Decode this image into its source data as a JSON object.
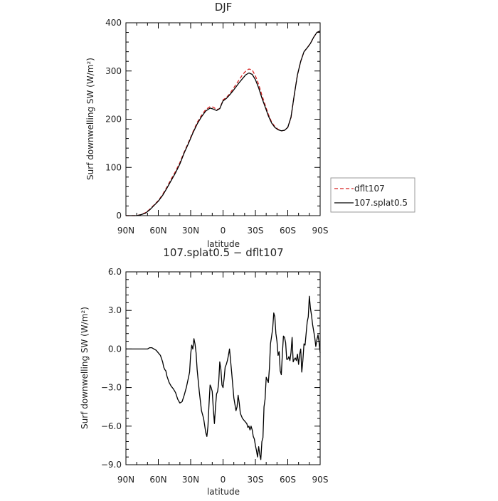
{
  "figure": {
    "background": "#ffffff"
  },
  "chart_data": [
    {
      "type": "line",
      "title": "DJF",
      "xlabel": "latitude",
      "ylabel": "Surf downwelling SW (W/m²)",
      "xlim": [
        -90,
        90
      ],
      "ylim": [
        0,
        400
      ],
      "x_ticks": [
        -90,
        -60,
        -30,
        0,
        30,
        60,
        90
      ],
      "x_tick_labels": [
        "90N",
        "60N",
        "30N",
        "0",
        "30S",
        "60S",
        "90S"
      ],
      "y_ticks": [
        0,
        100,
        200,
        300,
        400
      ],
      "y_tick_labels": [
        "0",
        "100",
        "200",
        "300",
        "400"
      ],
      "legend": {
        "placement": "right",
        "entries": [
          "dflt107",
          "107.splat0.5"
        ]
      },
      "series": [
        {
          "name": "dflt107",
          "color": "#d62020",
          "style": "dashed",
          "x": [
            -90,
            -80,
            -76,
            -72,
            -68,
            -64,
            -60,
            -56,
            -52,
            -48,
            -44,
            -40,
            -36,
            -32,
            -28,
            -24,
            -20,
            -16,
            -12,
            -9,
            -6,
            -3,
            0,
            3,
            6,
            9,
            12,
            15,
            18,
            21,
            24,
            27,
            30,
            33,
            36,
            39,
            42,
            45,
            48,
            51,
            54,
            57,
            60,
            63,
            66,
            69,
            72,
            75,
            78,
            81,
            84,
            87,
            90
          ],
          "y": [
            0,
            0,
            2,
            6,
            13,
            22,
            31,
            44,
            59,
            76,
            92,
            110,
            132,
            152,
            173,
            193,
            208,
            220,
            226,
            225,
            220,
            222,
            240,
            245,
            252,
            262,
            272,
            282,
            292,
            300,
            304,
            302,
            290,
            272,
            250,
            230,
            210,
            194,
            185,
            179,
            176,
            177,
            183,
            203,
            250,
            292,
            320,
            340,
            348,
            357,
            370,
            380,
            383
          ]
        },
        {
          "name": "107.splat0.5",
          "color": "#000000",
          "style": "solid",
          "x": [
            -90,
            -80,
            -76,
            -72,
            -68,
            -64,
            -60,
            -56,
            -52,
            -48,
            -44,
            -40,
            -36,
            -32,
            -28,
            -24,
            -20,
            -16,
            -12,
            -9,
            -6,
            -3,
            0,
            3,
            6,
            9,
            12,
            15,
            18,
            21,
            24,
            27,
            30,
            33,
            36,
            39,
            42,
            45,
            48,
            51,
            54,
            57,
            60,
            63,
            66,
            69,
            72,
            75,
            78,
            81,
            84,
            87,
            90
          ],
          "y": [
            0,
            0,
            2,
            5,
            12,
            21,
            30,
            42,
            57,
            73,
            89,
            107,
            130,
            150,
            171,
            190,
            205,
            217,
            223,
            221,
            218,
            222,
            238,
            243,
            250,
            258,
            267,
            276,
            284,
            292,
            296,
            293,
            282,
            265,
            244,
            226,
            207,
            192,
            183,
            178,
            176,
            177,
            183,
            204,
            250,
            292,
            320,
            340,
            348,
            357,
            370,
            380,
            383
          ]
        }
      ]
    },
    {
      "type": "line",
      "title": "107.splat0.5 − dflt107",
      "xlabel": "latitude",
      "ylabel": "Surf downwelling SW (W/m²)",
      "xlim": [
        -90,
        90
      ],
      "ylim": [
        -9,
        6
      ],
      "x_ticks": [
        -90,
        -60,
        -30,
        0,
        30,
        60,
        90
      ],
      "x_tick_labels": [
        "90N",
        "60N",
        "30N",
        "0",
        "30S",
        "60S",
        "90S"
      ],
      "y_ticks": [
        -9,
        -6,
        -3,
        0,
        3,
        6
      ],
      "y_tick_labels": [
        "−9.0",
        "−6.0",
        "−3.0",
        "0.0",
        "3.0",
        "6.0"
      ],
      "series": [
        {
          "color": "#000000",
          "style": "solid",
          "x": [
            -90,
            -80,
            -76,
            -74,
            -72,
            -70,
            -68,
            -66,
            -64,
            -62,
            -60,
            -58,
            -56,
            -55,
            -54,
            -53,
            -52,
            -50,
            -48,
            -46,
            -44,
            -42,
            -40,
            -38,
            -36,
            -34,
            -32,
            -31,
            -30,
            -29,
            -28,
            -27,
            -26,
            -25,
            -24,
            -22,
            -20,
            -18,
            -16,
            -15,
            -14,
            -13,
            -12,
            -11,
            -10,
            -9,
            -8,
            -7,
            -6,
            -5,
            -4,
            -3,
            -2,
            -1,
            0,
            1,
            2,
            3,
            4,
            5,
            6,
            8,
            10,
            12,
            13,
            14,
            15,
            16,
            18,
            20,
            22,
            23,
            24,
            25,
            26,
            27,
            28,
            29,
            30,
            31,
            32,
            33,
            34,
            35,
            36,
            37,
            38,
            39,
            40,
            41,
            42,
            43,
            44,
            45,
            46,
            47,
            48,
            49,
            50,
            51,
            52,
            53,
            54,
            55,
            56,
            57,
            58,
            59,
            60,
            61,
            62,
            63,
            64,
            65,
            66,
            67,
            68,
            69,
            70,
            71,
            72,
            73,
            74,
            75,
            76,
            77,
            78,
            79,
            80,
            81,
            82,
            83,
            84,
            85,
            86,
            87,
            88,
            89,
            90
          ],
          "y": [
            0,
            0,
            0,
            0,
            0,
            0,
            0.1,
            0.1,
            0,
            -0.1,
            -0.3,
            -0.5,
            -1.0,
            -1.4,
            -1.6,
            -1.7,
            -2.1,
            -2.6,
            -2.9,
            -3.1,
            -3.4,
            -3.9,
            -4.2,
            -4.1,
            -3.6,
            -3.0,
            -2.2,
            -1.8,
            -0.4,
            0.3,
            0.0,
            0.8,
            0.4,
            -0.3,
            -1.6,
            -3.3,
            -4.8,
            -5.4,
            -6.5,
            -6.8,
            -6.0,
            -4.3,
            -2.8,
            -3.0,
            -3.3,
            -4.7,
            -5.8,
            -4.5,
            -3.5,
            -3.3,
            -2.6,
            -1.0,
            -1.6,
            -2.8,
            -3.0,
            -2.3,
            -1.4,
            -1.2,
            -0.9,
            -0.5,
            0.0,
            -1.8,
            -3.8,
            -4.8,
            -4.5,
            -3.6,
            -4.2,
            -5.0,
            -5.4,
            -5.6,
            -5.8,
            -6.1,
            -6.0,
            -6.3,
            -6.0,
            -6.3,
            -6.8,
            -7.0,
            -7.5,
            -7.9,
            -8.4,
            -7.6,
            -8.2,
            -8.6,
            -7.2,
            -6.9,
            -4.5,
            -3.9,
            -2.2,
            -2.4,
            -2.6,
            -1.5,
            0.4,
            1.0,
            1.6,
            2.8,
            2.5,
            1.2,
            0.6,
            -0.5,
            -0.2,
            -1.7,
            -2.0,
            -0.4,
            1.0,
            0.9,
            0.5,
            -0.8,
            -0.8,
            -0.6,
            -0.9,
            -0.3,
            0.9,
            -1.0,
            -0.8,
            -0.7,
            -0.9,
            -0.4,
            -1.2,
            -0.4,
            0.0,
            -1.8,
            -0.9,
            0.4,
            0.3,
            1.2,
            2.1,
            2.5,
            4.1,
            3.2,
            2.6,
            1.9,
            1.4,
            0.9,
            0.2,
            0.7,
            1.1,
            0.5,
            -0.3
          ]
        }
      ]
    }
  ]
}
